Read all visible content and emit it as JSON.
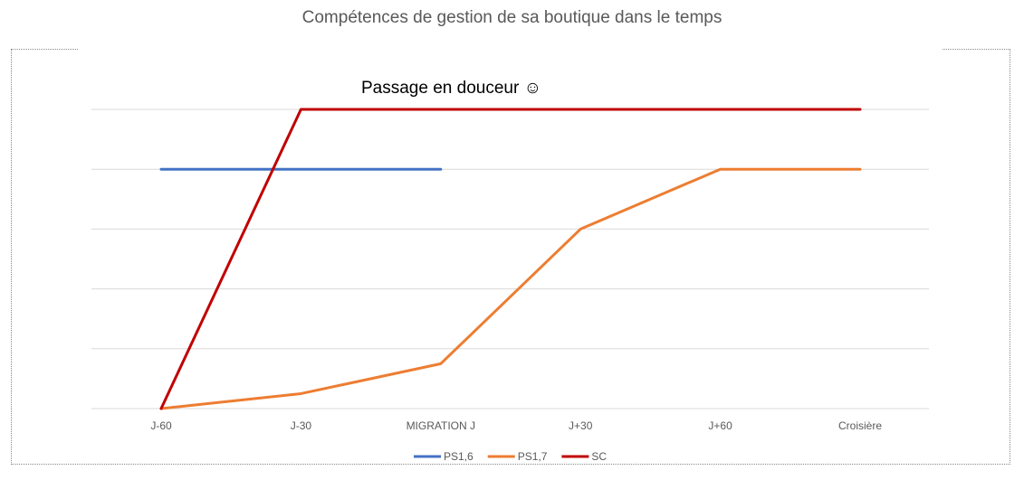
{
  "chart_data": {
    "type": "line",
    "title": "Compétences de gestion de sa boutique dans le temps",
    "annotation": "Passage en douceur ☺",
    "categories": [
      "J-60",
      "J-30",
      "MIGRATION J",
      "J+30",
      "J+60",
      "Croisière"
    ],
    "ylim": [
      0,
      5
    ],
    "grid": true,
    "legend_position": "bottom",
    "series": [
      {
        "name": "PS1,6",
        "color": "#4472C4",
        "values": [
          4,
          4,
          4,
          null,
          null,
          null
        ]
      },
      {
        "name": "PS1,7",
        "color": "#ED7D31",
        "values": [
          0,
          0.25,
          0.75,
          3,
          4,
          4
        ]
      },
      {
        "name": "SC",
        "color": "#C00000",
        "values": [
          0,
          5,
          5,
          5,
          5,
          5
        ]
      }
    ]
  }
}
